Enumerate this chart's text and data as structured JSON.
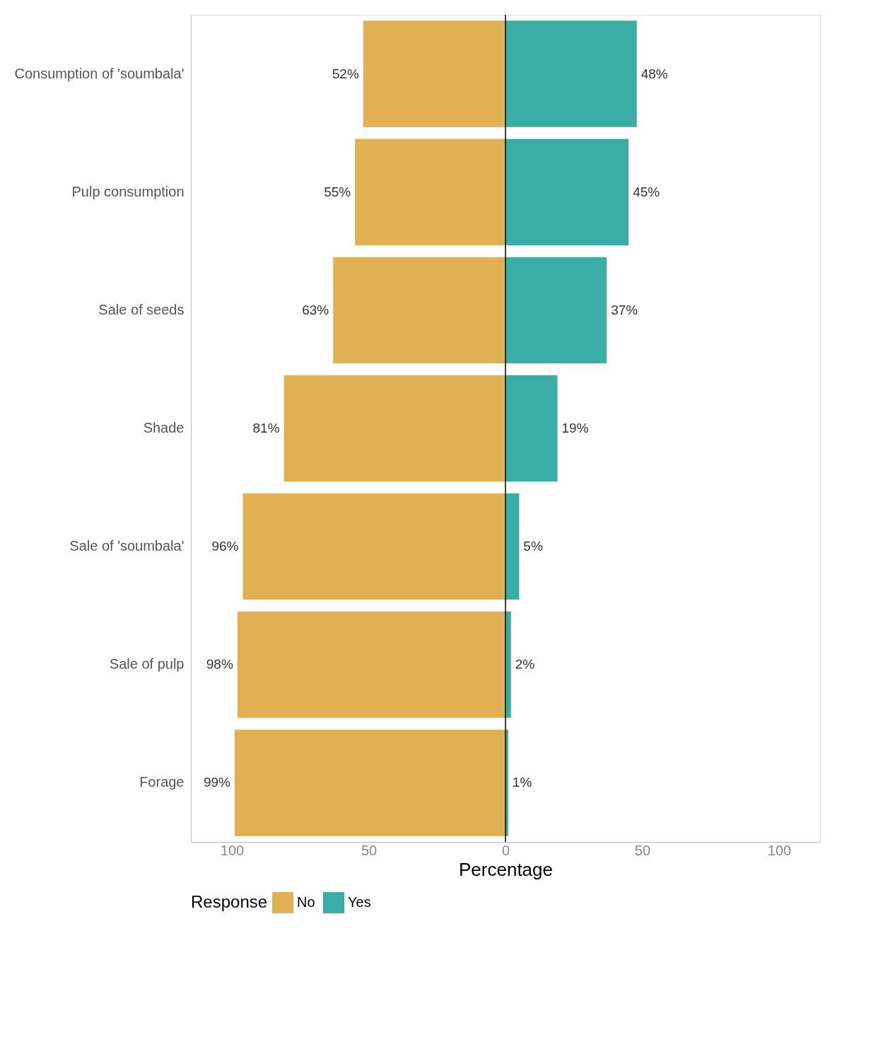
{
  "chart_data": {
    "type": "bar",
    "orientation": "horizontal",
    "categories": [
      "Consumption of 'soumbala'",
      "Pulp consumption",
      "Sale of seeds",
      "Shade",
      "Sale of 'soumbala'",
      "Sale of pulp",
      "Forage"
    ],
    "series": [
      {
        "name": "No",
        "color": "#e0b052",
        "values": [
          52,
          55,
          63,
          81,
          96,
          98,
          99
        ],
        "base": [
          -52,
          -55,
          -63,
          -81,
          -96,
          -98,
          -99
        ],
        "value_labels": [
          "52%",
          "55%",
          "63%",
          "81%",
          "96%",
          "98%",
          "99%"
        ]
      },
      {
        "name": "Yes",
        "color": "#3aaea6",
        "values": [
          48,
          45,
          37,
          19,
          5,
          2,
          1
        ],
        "base": [
          0,
          0,
          0,
          0,
          0,
          0,
          0
        ],
        "value_labels": [
          "48%",
          "45%",
          "37%",
          "19%",
          "5%",
          "2%",
          "1%"
        ]
      }
    ],
    "xlabel": "Percentage",
    "legend_title": "Response",
    "legend": "bottom",
    "xlim": [
      -115,
      115
    ],
    "xticks": [
      {
        "value": -100,
        "label": "100"
      },
      {
        "value": -50,
        "label": "50"
      },
      0,
      50,
      100
    ],
    "ref_lines": [
      {
        "axis": "x",
        "value": 0,
        "color": "#000000"
      }
    ],
    "grid": false
  }
}
